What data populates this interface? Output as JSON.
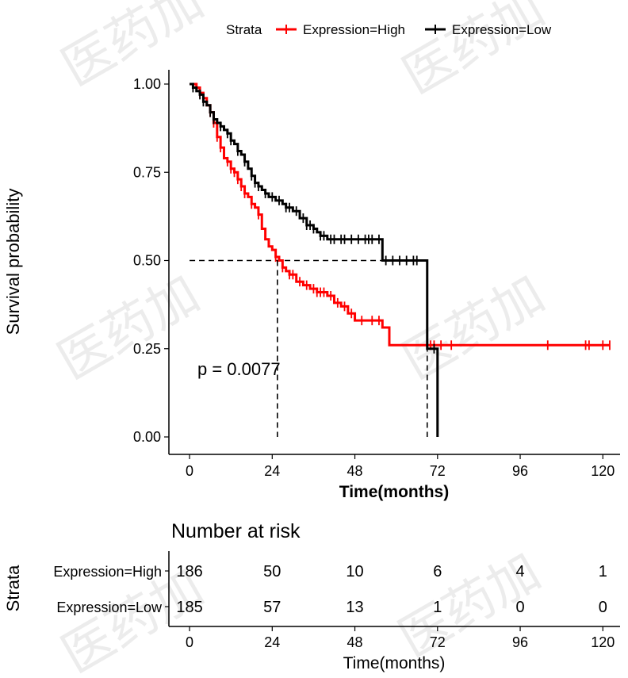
{
  "watermark": "医药加",
  "chart_data": {
    "type": "line",
    "subtype": "kaplan-meier",
    "legend": {
      "title": "Strata",
      "position": "top"
    },
    "series": [
      {
        "name": "Expression=High",
        "color": "#ff0000",
        "steps": [
          [
            0,
            1.0
          ],
          [
            2,
            0.99
          ],
          [
            3,
            0.975
          ],
          [
            4,
            0.96
          ],
          [
            5,
            0.94
          ],
          [
            6,
            0.92
          ],
          [
            7,
            0.89
          ],
          [
            8,
            0.85
          ],
          [
            9,
            0.82
          ],
          [
            10,
            0.79
          ],
          [
            11,
            0.78
          ],
          [
            12,
            0.76
          ],
          [
            13,
            0.75
          ],
          [
            14,
            0.73
          ],
          [
            15,
            0.71
          ],
          [
            16,
            0.69
          ],
          [
            17,
            0.68
          ],
          [
            18,
            0.66
          ],
          [
            19,
            0.65
          ],
          [
            20,
            0.63
          ],
          [
            21,
            0.59
          ],
          [
            22,
            0.56
          ],
          [
            23,
            0.54
          ],
          [
            24,
            0.53
          ],
          [
            25,
            0.51
          ],
          [
            26,
            0.5
          ],
          [
            27,
            0.48
          ],
          [
            28,
            0.47
          ],
          [
            29,
            0.46
          ],
          [
            31,
            0.44
          ],
          [
            33,
            0.43
          ],
          [
            35,
            0.42
          ],
          [
            37,
            0.41
          ],
          [
            40,
            0.4
          ],
          [
            42,
            0.38
          ],
          [
            44,
            0.37
          ],
          [
            46,
            0.35
          ],
          [
            48,
            0.33
          ],
          [
            56,
            0.31
          ],
          [
            58,
            0.26
          ],
          [
            122,
            0.26
          ]
        ],
        "censor_times": [
          3,
          6,
          7,
          8,
          9,
          11,
          12,
          13,
          14,
          15,
          16,
          18,
          20,
          25,
          27,
          29,
          30,
          32,
          34,
          36,
          37,
          38,
          39,
          41,
          43,
          45,
          47,
          50,
          53,
          55,
          70,
          71,
          73,
          76,
          104,
          115,
          116,
          120,
          122
        ]
      },
      {
        "name": "Expression=Low",
        "color": "#000000",
        "steps": [
          [
            0,
            1.0
          ],
          [
            1,
            0.99
          ],
          [
            2,
            0.98
          ],
          [
            3,
            0.97
          ],
          [
            4,
            0.95
          ],
          [
            5,
            0.94
          ],
          [
            6,
            0.92
          ],
          [
            7,
            0.9
          ],
          [
            8,
            0.89
          ],
          [
            9,
            0.88
          ],
          [
            10,
            0.87
          ],
          [
            11,
            0.86
          ],
          [
            12,
            0.84
          ],
          [
            13,
            0.83
          ],
          [
            14,
            0.81
          ],
          [
            15,
            0.8
          ],
          [
            16,
            0.78
          ],
          [
            17,
            0.76
          ],
          [
            18,
            0.74
          ],
          [
            19,
            0.72
          ],
          [
            20,
            0.71
          ],
          [
            21,
            0.7
          ],
          [
            22,
            0.69
          ],
          [
            23,
            0.68
          ],
          [
            25,
            0.67
          ],
          [
            27,
            0.66
          ],
          [
            28,
            0.65
          ],
          [
            30,
            0.64
          ],
          [
            32,
            0.62
          ],
          [
            34,
            0.6
          ],
          [
            36,
            0.59
          ],
          [
            37,
            0.58
          ],
          [
            38,
            0.57
          ],
          [
            40,
            0.56
          ],
          [
            56,
            0.5
          ],
          [
            69,
            0.25
          ],
          [
            72,
            0.0
          ]
        ],
        "censor_times": [
          1,
          3,
          4,
          6,
          7,
          9,
          11,
          12,
          14,
          16,
          18,
          19,
          20,
          22,
          24,
          26,
          28,
          29,
          31,
          33,
          34,
          35,
          36,
          38,
          39,
          41,
          42,
          44,
          45,
          47,
          49,
          51,
          52,
          53,
          55,
          57,
          59,
          61,
          63,
          65,
          66,
          71
        ]
      }
    ],
    "median_lines": [
      {
        "x": 25.5,
        "y": 0.5
      },
      {
        "x": 69.0,
        "y": 0.5
      }
    ],
    "annotation": "p = 0.0077",
    "xlabel": "Time(months)",
    "ylabel": "Survival probability",
    "xlim": [
      -6,
      125
    ],
    "ylim": [
      0,
      1
    ],
    "xticks": [
      0,
      24,
      48,
      72,
      96,
      120
    ],
    "yticks": [
      0.0,
      0.25,
      0.5,
      0.75,
      1.0
    ],
    "ytick_labels": [
      "0.00",
      "0.25",
      "0.50",
      "0.75",
      "1.00"
    ],
    "risk_table": {
      "title": "Number at risk",
      "ylabel": "Strata",
      "xlabel": "Time(months)",
      "times": [
        0,
        24,
        48,
        72,
        96,
        120
      ],
      "rows": [
        {
          "label": "Expression=High",
          "color": "#ff0000",
          "values": [
            186,
            50,
            10,
            6,
            4,
            1
          ]
        },
        {
          "label": "Expression=Low",
          "color": "#000000",
          "values": [
            185,
            57,
            13,
            1,
            0,
            0
          ]
        }
      ]
    }
  }
}
